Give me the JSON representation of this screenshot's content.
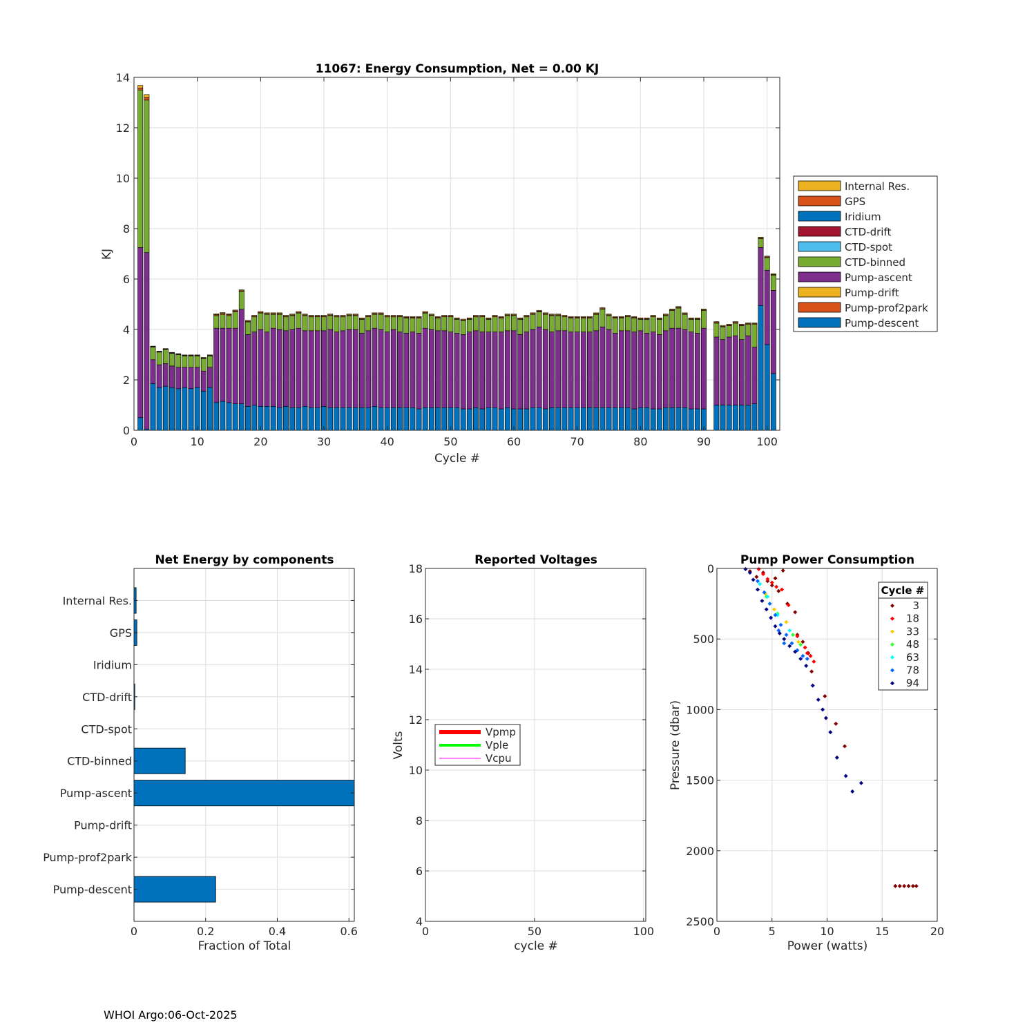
{
  "footer": "WHOI Argo:06-Oct-2025",
  "colors": {
    "internal_res": "#EDB120",
    "gps": "#D95319",
    "iridium": "#0072BD",
    "ctd_drift": "#A2142F",
    "ctd_spot": "#4DBEEE",
    "ctd_binned": "#77AC30",
    "pump_ascent": "#7E2F8E",
    "pump_drift": "#EDB120",
    "pump_prof2park": "#D95319",
    "pump_descent": "#0072BD"
  },
  "chart_data": [
    {
      "id": "energy",
      "type": "bar",
      "stacked": true,
      "title": "11067: Energy Consumption,  Net =   0.00 KJ",
      "xlabel": "Cycle #",
      "ylabel": "KJ",
      "xlim": [
        0,
        102
      ],
      "ylim": [
        0,
        14
      ],
      "xticks": [
        0,
        10,
        20,
        30,
        40,
        50,
        60,
        70,
        80,
        90,
        100
      ],
      "yticks": [
        0,
        2,
        4,
        6,
        8,
        10,
        12,
        14
      ],
      "grid": true,
      "legend_position": "right-outside",
      "legend": [
        "Internal Res.",
        "GPS",
        "Iridium",
        "CTD-drift",
        "CTD-spot",
        "CTD-binned",
        "Pump-ascent",
        "Pump-drift",
        "Pump-prof2park",
        "Pump-descent"
      ],
      "series_order": [
        "Pump-descent",
        "Pump-ascent",
        "CTD-binned",
        "GPS",
        "Internal Res."
      ],
      "cycles": [
        1,
        2,
        3,
        4,
        5,
        6,
        7,
        8,
        9,
        10,
        11,
        12,
        13,
        14,
        15,
        16,
        17,
        18,
        19,
        20,
        21,
        22,
        23,
        24,
        25,
        26,
        27,
        28,
        29,
        30,
        31,
        32,
        33,
        34,
        35,
        36,
        37,
        38,
        39,
        40,
        41,
        42,
        43,
        44,
        45,
        46,
        47,
        48,
        49,
        50,
        51,
        52,
        53,
        54,
        55,
        56,
        57,
        58,
        59,
        60,
        61,
        62,
        63,
        64,
        65,
        66,
        67,
        68,
        69,
        70,
        71,
        72,
        73,
        74,
        75,
        76,
        77,
        78,
        79,
        80,
        81,
        82,
        83,
        84,
        85,
        86,
        87,
        88,
        89,
        90,
        92,
        93,
        94,
        95,
        96,
        97,
        98,
        99,
        100,
        101
      ],
      "pump_descent": [
        0.5,
        0.05,
        1.85,
        1.7,
        1.75,
        1.7,
        1.65,
        1.7,
        1.65,
        1.7,
        1.55,
        1.7,
        1.1,
        1.15,
        1.1,
        1.05,
        1.05,
        0.95,
        1.0,
        0.95,
        0.95,
        0.95,
        0.9,
        0.95,
        0.9,
        0.9,
        0.95,
        0.9,
        0.9,
        0.95,
        0.9,
        0.9,
        0.9,
        0.9,
        0.9,
        0.9,
        0.9,
        0.95,
        0.9,
        0.9,
        0.9,
        0.9,
        0.9,
        0.9,
        0.85,
        0.9,
        0.9,
        0.9,
        0.9,
        0.9,
        0.9,
        0.85,
        0.85,
        0.9,
        0.85,
        0.9,
        0.9,
        0.85,
        0.9,
        0.85,
        0.85,
        0.85,
        0.9,
        0.9,
        0.85,
        0.9,
        0.9,
        0.9,
        0.9,
        0.9,
        0.9,
        0.9,
        0.9,
        0.9,
        0.9,
        0.9,
        0.9,
        0.9,
        0.85,
        0.9,
        0.9,
        0.85,
        0.85,
        0.9,
        0.9,
        0.9,
        0.9,
        0.85,
        0.85,
        0.85,
        1.0,
        1.0,
        1.0,
        1.0,
        1.0,
        1.0,
        1.05,
        4.95,
        3.4,
        2.25
      ],
      "pump_ascent": [
        6.75,
        7.0,
        0.95,
        0.9,
        0.9,
        0.85,
        0.85,
        0.8,
        0.85,
        0.8,
        0.8,
        0.8,
        2.95,
        2.9,
        2.95,
        3.0,
        3.75,
        2.85,
        2.9,
        3.05,
        2.95,
        3.1,
        3.1,
        3.0,
        3.1,
        3.15,
        3.0,
        3.05,
        3.05,
        3.0,
        3.1,
        3.0,
        3.05,
        3.1,
        3.1,
        2.95,
        3.05,
        3.1,
        3.1,
        3.0,
        3.1,
        3.0,
        2.95,
        3.0,
        3.0,
        3.15,
        3.1,
        3.05,
        3.05,
        3.0,
        2.95,
        2.95,
        3.05,
        3.05,
        3.05,
        3.0,
        3.0,
        3.05,
        3.05,
        3.1,
        2.95,
        3.05,
        3.1,
        3.2,
        3.15,
        3.0,
        3.05,
        3.05,
        3.0,
        3.0,
        3.0,
        3.0,
        3.05,
        3.2,
        3.1,
        2.95,
        3.05,
        3.05,
        3.05,
        3.05,
        2.95,
        3.05,
        2.95,
        3.05,
        3.15,
        3.15,
        3.1,
        3.05,
        3.0,
        3.2,
        2.7,
        2.6,
        2.7,
        2.75,
        2.6,
        2.75,
        2.25,
        2.3,
        2.95,
        3.3
      ],
      "ctd_binned": [
        6.25,
        6.05,
        0.5,
        0.5,
        0.55,
        0.5,
        0.5,
        0.45,
        0.45,
        0.45,
        0.5,
        0.45,
        0.5,
        0.55,
        0.5,
        0.65,
        0.7,
        0.5,
        0.6,
        0.65,
        0.7,
        0.55,
        0.6,
        0.55,
        0.55,
        0.6,
        0.6,
        0.55,
        0.55,
        0.55,
        0.55,
        0.6,
        0.55,
        0.55,
        0.55,
        0.55,
        0.55,
        0.55,
        0.6,
        0.6,
        0.5,
        0.6,
        0.6,
        0.55,
        0.6,
        0.6,
        0.55,
        0.5,
        0.55,
        0.6,
        0.55,
        0.55,
        0.5,
        0.55,
        0.6,
        0.5,
        0.6,
        0.55,
        0.6,
        0.6,
        0.6,
        0.6,
        0.6,
        0.6,
        0.6,
        0.65,
        0.6,
        0.55,
        0.55,
        0.55,
        0.55,
        0.55,
        0.65,
        0.7,
        0.55,
        0.6,
        0.5,
        0.55,
        0.55,
        0.45,
        0.55,
        0.6,
        0.6,
        0.6,
        0.7,
        0.8,
        0.6,
        0.5,
        0.55,
        0.7,
        0.55,
        0.5,
        0.45,
        0.5,
        0.55,
        0.45,
        0.9,
        0.35,
        0.5,
        0.6
      ],
      "gps": [
        0.08,
        0.1,
        0.02,
        0.02,
        0.02,
        0.02,
        0.02,
        0.02,
        0.02,
        0.02,
        0.02,
        0.02,
        0.04,
        0.04,
        0.04,
        0.04,
        0.04,
        0.03,
        0.03,
        0.03,
        0.03,
        0.03,
        0.03,
        0.03,
        0.03,
        0.03,
        0.03,
        0.03,
        0.03,
        0.03,
        0.03,
        0.03,
        0.03,
        0.03,
        0.03,
        0.03,
        0.03,
        0.03,
        0.03,
        0.03,
        0.03,
        0.03,
        0.03,
        0.03,
        0.03,
        0.03,
        0.03,
        0.03,
        0.03,
        0.03,
        0.03,
        0.03,
        0.03,
        0.03,
        0.03,
        0.03,
        0.03,
        0.03,
        0.03,
        0.03,
        0.03,
        0.03,
        0.03,
        0.03,
        0.03,
        0.03,
        0.03,
        0.03,
        0.03,
        0.03,
        0.03,
        0.03,
        0.03,
        0.03,
        0.03,
        0.03,
        0.03,
        0.03,
        0.03,
        0.03,
        0.03,
        0.03,
        0.03,
        0.03,
        0.03,
        0.03,
        0.03,
        0.03,
        0.03,
        0.03,
        0.03,
        0.03,
        0.03,
        0.03,
        0.03,
        0.03,
        0.03,
        0.03,
        0.03,
        0.03
      ],
      "internal_res": [
        0.1,
        0.12,
        0.02,
        0.02,
        0.02,
        0.02,
        0.02,
        0.02,
        0.02,
        0.02,
        0.02,
        0.02,
        0.03,
        0.03,
        0.03,
        0.03,
        0.03,
        0.03,
        0.03,
        0.03,
        0.03,
        0.03,
        0.03,
        0.03,
        0.03,
        0.03,
        0.03,
        0.03,
        0.03,
        0.03,
        0.03,
        0.03,
        0.03,
        0.03,
        0.03,
        0.03,
        0.03,
        0.03,
        0.03,
        0.03,
        0.03,
        0.03,
        0.03,
        0.03,
        0.03,
        0.03,
        0.03,
        0.03,
        0.03,
        0.03,
        0.03,
        0.03,
        0.03,
        0.03,
        0.03,
        0.03,
        0.03,
        0.03,
        0.03,
        0.03,
        0.03,
        0.03,
        0.03,
        0.03,
        0.03,
        0.03,
        0.03,
        0.03,
        0.03,
        0.03,
        0.03,
        0.03,
        0.03,
        0.03,
        0.03,
        0.03,
        0.03,
        0.03,
        0.03,
        0.03,
        0.03,
        0.03,
        0.03,
        0.03,
        0.03,
        0.03,
        0.03,
        0.03,
        0.03,
        0.03,
        0.03,
        0.03,
        0.03,
        0.03,
        0.03,
        0.03,
        0.03,
        0.03,
        0.03,
        0.03
      ]
    },
    {
      "id": "components",
      "type": "bar",
      "orientation": "horizontal",
      "title": "Net Energy by components",
      "xlabel": "Fraction of Total",
      "xlim": [
        0,
        0.615
      ],
      "xticks": [
        0,
        0.2,
        0.4,
        0.6
      ],
      "xtick_labels": [
        "0",
        "0.2",
        "0.4",
        "0.6"
      ],
      "categories": [
        "Internal Res.",
        "GPS",
        "Iridium",
        "CTD-drift",
        "CTD-spot",
        "CTD-binned",
        "Pump-ascent",
        "Pump-drift",
        "Pump-prof2park",
        "Pump-descent"
      ],
      "values": [
        0.006,
        0.008,
        0.0,
        0.002,
        0.0,
        0.143,
        0.62,
        0.0,
        0.0,
        0.228
      ],
      "grid": true
    },
    {
      "id": "voltages",
      "type": "line",
      "title": "Reported Voltages",
      "xlabel": "cycle #",
      "ylabel": "Volts",
      "xlim": [
        0,
        101
      ],
      "ylim": [
        4,
        18
      ],
      "xticks": [
        0,
        50,
        100
      ],
      "yticks": [
        4,
        6,
        8,
        10,
        12,
        14,
        16,
        18
      ],
      "grid": true,
      "legend_position": "middle-left",
      "series": [
        {
          "name": "Vpmp",
          "color": "#FF0000",
          "values": []
        },
        {
          "name": "Vple",
          "color": "#00FF00",
          "values": []
        },
        {
          "name": "Vcpu",
          "color": "#FF00FF",
          "values": []
        }
      ]
    },
    {
      "id": "pump",
      "type": "scatter",
      "title": "Pump Power Consumption",
      "xlabel": "Power (watts)",
      "ylabel": "Pressure (dbar)",
      "xlim": [
        0,
        20
      ],
      "ylim": [
        0,
        2500
      ],
      "y_reversed": true,
      "xticks": [
        0,
        5,
        10,
        15,
        20
      ],
      "yticks": [
        0,
        500,
        1000,
        1500,
        2000,
        2500
      ],
      "grid": true,
      "legend_title": "Cycle #",
      "legend_position": "top-right",
      "series": [
        {
          "name": "3",
          "color": "#800000",
          "points": [
            [
              3.0,
              20
            ],
            [
              3.6,
              60
            ],
            [
              4.2,
              30
            ],
            [
              4.6,
              90
            ],
            [
              5.0,
              120
            ],
            [
              5.6,
              160
            ],
            [
              6.0,
              15
            ],
            [
              5.3,
              70
            ],
            [
              6.4,
              250
            ],
            [
              7.1,
              310
            ],
            [
              7.3,
              470
            ],
            [
              7.8,
              520
            ],
            [
              8.3,
              600
            ],
            [
              8.6,
              730
            ],
            [
              9.8,
              905
            ],
            [
              10.8,
              1100
            ],
            [
              11.6,
              1260
            ],
            [
              16.2,
              2250
            ],
            [
              16.6,
              2250
            ],
            [
              17.0,
              2250
            ],
            [
              17.4,
              2250
            ],
            [
              17.8,
              2250
            ],
            [
              18.1,
              2250
            ]
          ]
        },
        {
          "name": "18",
          "color": "#FF0000",
          "points": [
            [
              3.8,
              5
            ],
            [
              4.2,
              40
            ],
            [
              4.6,
              75
            ],
            [
              5.0,
              100
            ],
            [
              5.4,
              130
            ],
            [
              5.9,
              150
            ],
            [
              6.5,
              260
            ],
            [
              7.3,
              480
            ],
            [
              8.0,
              560
            ],
            [
              8.5,
              620
            ],
            [
              8.8,
              660
            ],
            [
              8.2,
              600
            ]
          ]
        },
        {
          "name": "33",
          "color": "#FFCC00",
          "points": [
            [
              4.4,
              180
            ],
            [
              5.2,
              290
            ],
            [
              6.3,
              380
            ],
            [
              7.4,
              520
            ]
          ]
        },
        {
          "name": "48",
          "color": "#33FF33",
          "points": [
            [
              4.5,
              200
            ],
            [
              5.5,
              320
            ],
            [
              6.9,
              470
            ],
            [
              7.6,
              540
            ]
          ]
        },
        {
          "name": "63",
          "color": "#00FFFF",
          "points": [
            [
              3.9,
              110
            ],
            [
              4.6,
              200
            ],
            [
              5.5,
              330
            ],
            [
              6.6,
              440
            ]
          ]
        },
        {
          "name": "78",
          "color": "#0066FF",
          "points": [
            [
              3.7,
              90
            ],
            [
              4.3,
              170
            ],
            [
              4.8,
              250
            ],
            [
              5.3,
              330
            ],
            [
              5.8,
              400
            ],
            [
              6.3,
              470
            ],
            [
              6.8,
              530
            ],
            [
              7.3,
              580
            ],
            [
              7.8,
              620
            ],
            [
              8.2,
              640
            ],
            [
              6.1,
              530
            ],
            [
              5.6,
              440
            ]
          ]
        },
        {
          "name": "94",
          "color": "#000080",
          "points": [
            [
              2.6,
              5
            ],
            [
              3.0,
              30
            ],
            [
              3.3,
              80
            ],
            [
              3.7,
              150
            ],
            [
              4.1,
              230
            ],
            [
              4.5,
              290
            ],
            [
              4.9,
              350
            ],
            [
              5.3,
              410
            ],
            [
              5.7,
              460
            ],
            [
              6.1,
              500
            ],
            [
              6.6,
              550
            ],
            [
              7.1,
              590
            ],
            [
              7.6,
              640
            ],
            [
              8.1,
              690
            ],
            [
              8.7,
              830
            ],
            [
              9.2,
              930
            ],
            [
              9.6,
              1000
            ],
            [
              9.9,
              1060
            ],
            [
              10.3,
              1160
            ],
            [
              10.9,
              1340
            ],
            [
              11.7,
              1470
            ],
            [
              12.3,
              1580
            ],
            [
              13.1,
              1520
            ]
          ]
        }
      ]
    }
  ]
}
